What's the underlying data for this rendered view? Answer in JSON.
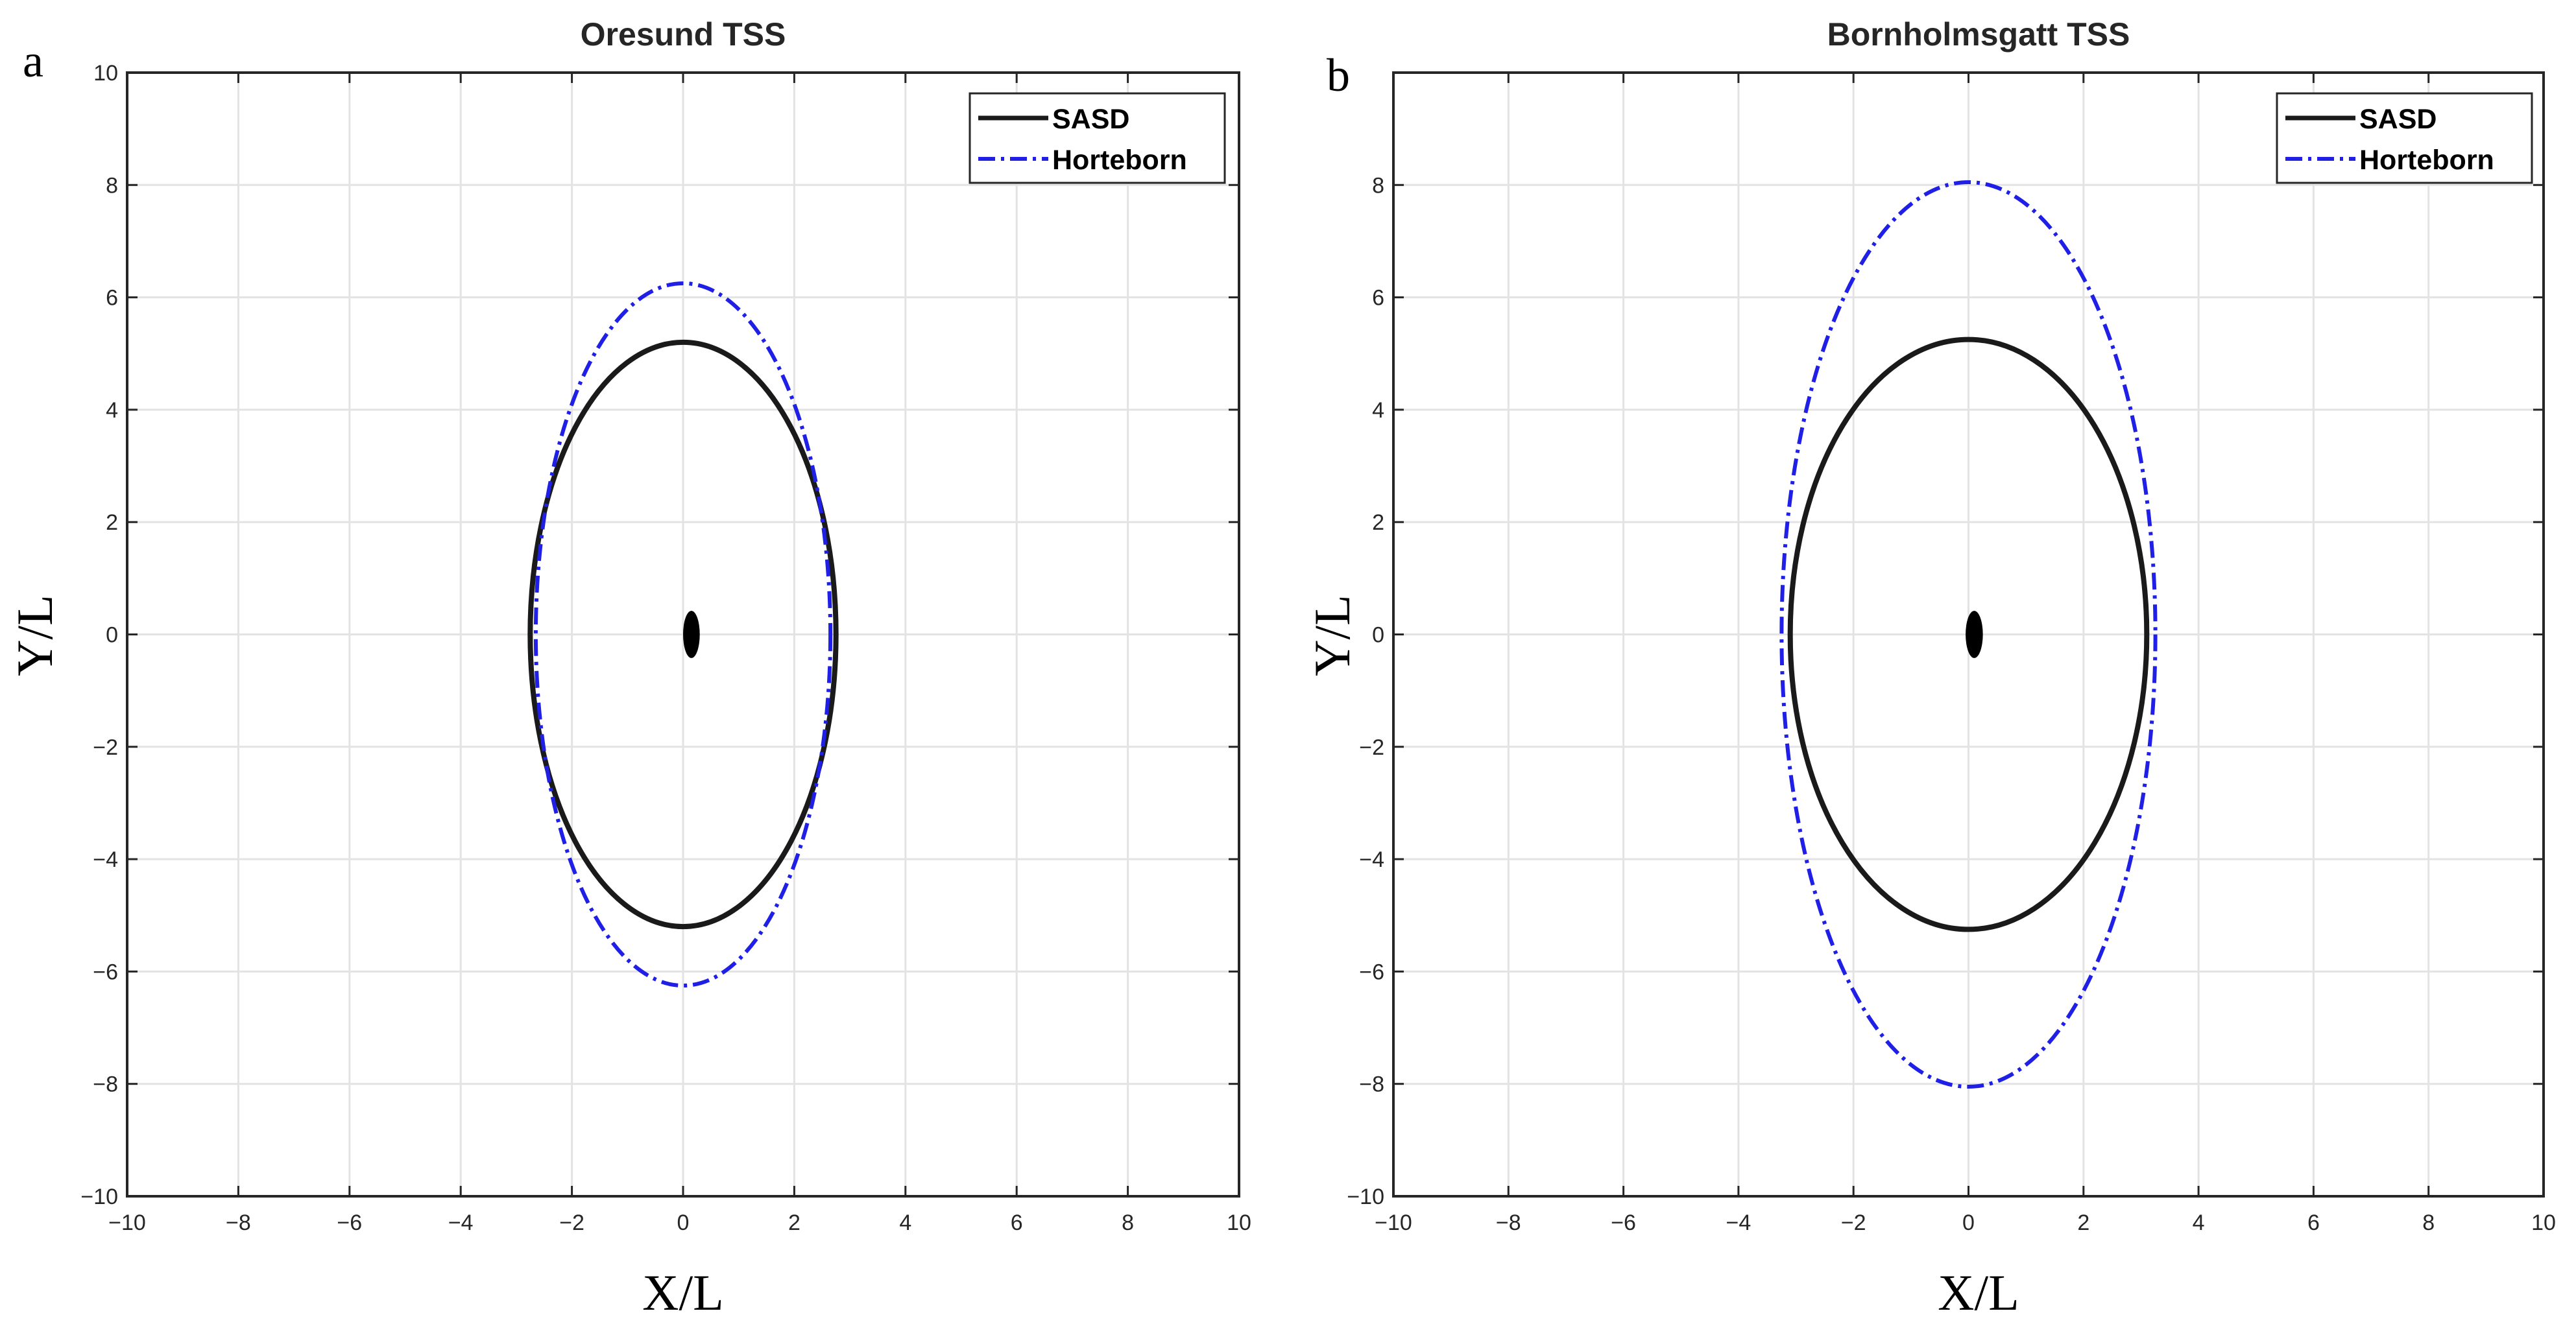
{
  "figure": {
    "panels": [
      {
        "letter": "a"
      },
      {
        "letter": "b"
      }
    ]
  },
  "chart_data": [
    {
      "type": "line",
      "title": "Oresund TSS",
      "xlabel": "X/L",
      "ylabel": "Y/L",
      "xlim": [
        -10,
        10
      ],
      "ylim": [
        -10,
        10
      ],
      "xticks": [
        -10,
        -8,
        -6,
        -4,
        -2,
        0,
        2,
        4,
        6,
        8,
        10
      ],
      "yticks": [
        -10,
        -8,
        -6,
        -4,
        -2,
        0,
        2,
        4,
        6,
        8,
        10
      ],
      "grid": true,
      "legend_position": "top-right",
      "series": [
        {
          "name": "SASD",
          "shape": "ellipse",
          "center": [
            0,
            0
          ],
          "semi_axis_x": 2.75,
          "semi_axis_y": 5.2,
          "color": "#1a1a1a",
          "style": "solid"
        },
        {
          "name": "Horteborn",
          "shape": "ellipse",
          "center": [
            0,
            0
          ],
          "semi_axis_x": 2.65,
          "semi_axis_y": 6.25,
          "color": "#1f1fe6",
          "style": "dash-dot"
        }
      ],
      "ship": {
        "center": [
          0.15,
          0
        ],
        "semi_axis_x": 0.15,
        "semi_axis_y": 0.42,
        "color": "#000000"
      }
    },
    {
      "type": "line",
      "title": "Bornholmsgatt TSS",
      "xlabel": "X/L",
      "ylabel": "Y/L",
      "xlim": [
        -10,
        10
      ],
      "ylim": [
        -10,
        10
      ],
      "xticks": [
        -10,
        -8,
        -6,
        -4,
        -2,
        0,
        2,
        4,
        6,
        8,
        10
      ],
      "yticks": [
        -10,
        -8,
        -6,
        -4,
        -2,
        0,
        2,
        4,
        6,
        8
      ],
      "grid": true,
      "legend_position": "top-right",
      "series": [
        {
          "name": "SASD",
          "shape": "ellipse",
          "center": [
            0,
            0
          ],
          "semi_axis_x": 3.1,
          "semi_axis_y": 5.25,
          "color": "#1a1a1a",
          "style": "solid"
        },
        {
          "name": "Horteborn",
          "shape": "ellipse",
          "center": [
            0,
            0
          ],
          "semi_axis_x": 3.25,
          "semi_axis_y": 8.05,
          "color": "#1f1fe6",
          "style": "dash-dot"
        }
      ],
      "ship": {
        "center": [
          0.1,
          0
        ],
        "semi_axis_x": 0.15,
        "semi_axis_y": 0.42,
        "color": "#000000"
      }
    }
  ]
}
